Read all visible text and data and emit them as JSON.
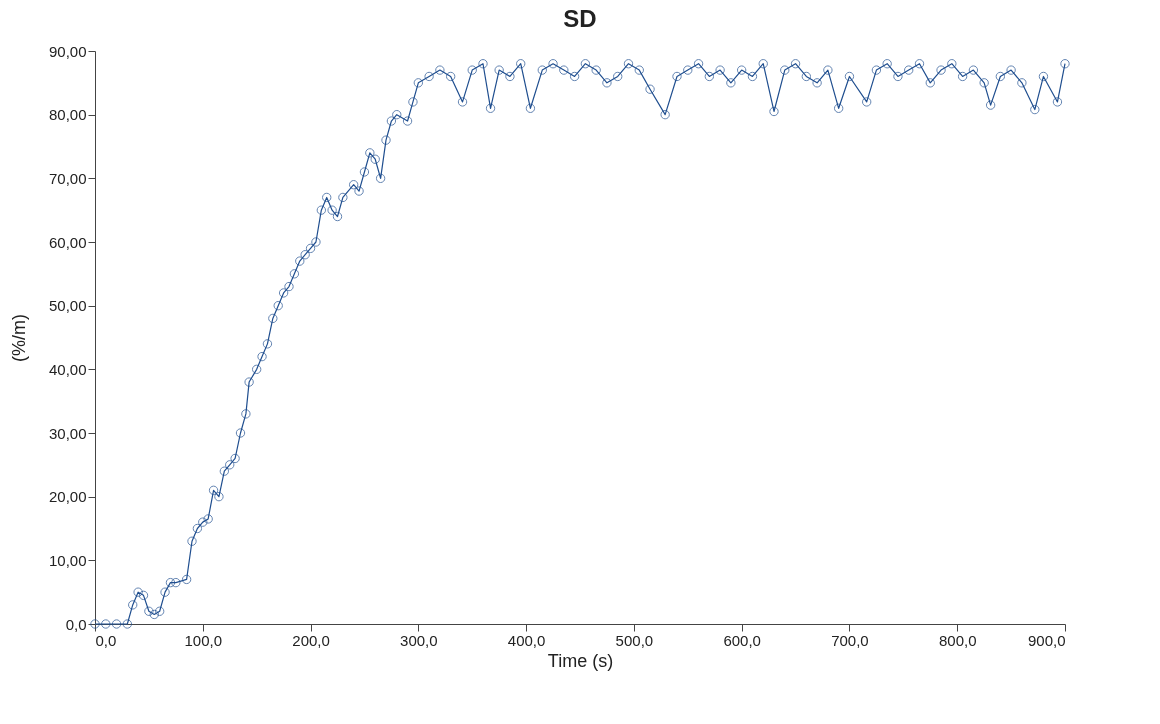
{
  "chart_data": {
    "type": "line",
    "title": "SD",
    "xlabel": "Time (s)",
    "ylabel": "(%/m)",
    "marker": "circle",
    "grid": false,
    "xlim": [
      0,
      900
    ],
    "ylim": [
      0,
      90
    ],
    "xticks": [
      {
        "value": 0,
        "label": "0,0"
      },
      {
        "value": 100,
        "label": "100,0"
      },
      {
        "value": 200,
        "label": "200,0"
      },
      {
        "value": 300,
        "label": "300,0"
      },
      {
        "value": 400,
        "label": "400,0"
      },
      {
        "value": 500,
        "label": "500,0"
      },
      {
        "value": 600,
        "label": "600,0"
      },
      {
        "value": 700,
        "label": "700,0"
      },
      {
        "value": 800,
        "label": "800,0"
      },
      {
        "value": 900,
        "label": "900,0"
      }
    ],
    "yticks": [
      {
        "value": 0,
        "label": "0,0"
      },
      {
        "value": 10,
        "label": "10,00"
      },
      {
        "value": 20,
        "label": "20,00"
      },
      {
        "value": 30,
        "label": "30,00"
      },
      {
        "value": 40,
        "label": "40,00"
      },
      {
        "value": 50,
        "label": "50,00"
      },
      {
        "value": 60,
        "label": "60,00"
      },
      {
        "value": 70,
        "label": "70,00"
      },
      {
        "value": 80,
        "label": "80,00"
      },
      {
        "value": 90,
        "label": "90,00"
      }
    ],
    "x": [
      0,
      10,
      20,
      30,
      35,
      40,
      45,
      50,
      55,
      60,
      65,
      70,
      75,
      85,
      90,
      95,
      100,
      105,
      110,
      115,
      120,
      125,
      130,
      135,
      140,
      143,
      150,
      155,
      160,
      165,
      170,
      175,
      180,
      185,
      190,
      195,
      200,
      205,
      210,
      215,
      220,
      225,
      230,
      240,
      245,
      250,
      255,
      260,
      265,
      270,
      275,
      280,
      290,
      295,
      300,
      310,
      320,
      330,
      341,
      350,
      360,
      367,
      375,
      385,
      395,
      404,
      415,
      425,
      435,
      445,
      455,
      465,
      475,
      485,
      495,
      505,
      515,
      529,
      540,
      550,
      560,
      570,
      580,
      590,
      600,
      610,
      620,
      630,
      640,
      650,
      660,
      670,
      680,
      690,
      700,
      716,
      725,
      735,
      745,
      755,
      765,
      775,
      785,
      795,
      805,
      815,
      825,
      831,
      840,
      850,
      860,
      872,
      880,
      893,
      900
    ],
    "series": [
      {
        "color": "#1f4e8f",
        "values": [
          0,
          0,
          0,
          0,
          3,
          5,
          4.5,
          2,
          1.5,
          2,
          5,
          6.5,
          6.5,
          7,
          13,
          15,
          16,
          16.5,
          21,
          20,
          24,
          25,
          26,
          30,
          33,
          38,
          40,
          42,
          44,
          48,
          50,
          52,
          53,
          55,
          57,
          58,
          59,
          60,
          65,
          67,
          65,
          64,
          67,
          69,
          68,
          71,
          74,
          73,
          70,
          76,
          79,
          80,
          79,
          82,
          85,
          86,
          87,
          86,
          82,
          87,
          88,
          81,
          87,
          86,
          88,
          81,
          87,
          88,
          87,
          86,
          88,
          87,
          85,
          86,
          88,
          87,
          84,
          80,
          86,
          87,
          88,
          86,
          87,
          85,
          87,
          86,
          88,
          80.5,
          87,
          88,
          86,
          85,
          87,
          81,
          86,
          82,
          87,
          88,
          86,
          87,
          88,
          85,
          87,
          88,
          86,
          87,
          85,
          81.5,
          86,
          87,
          85,
          80.8,
          86,
          82,
          88
        ]
      }
    ]
  }
}
